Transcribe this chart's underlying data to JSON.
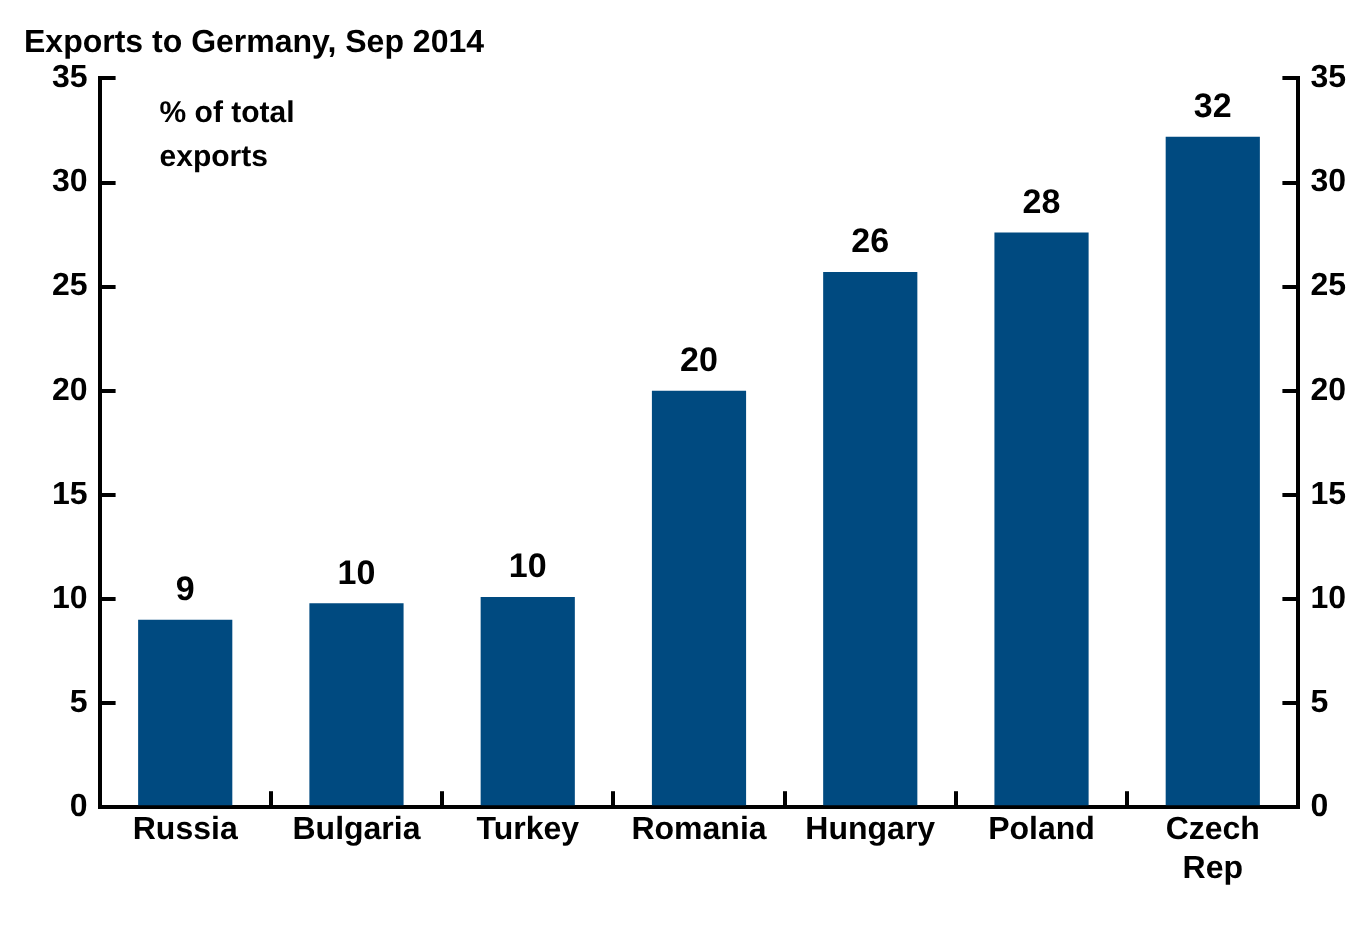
{
  "chart_data": {
    "type": "bar",
    "title": "Exports to Germany, Sep 2014",
    "annotations": [
      "% of total exports"
    ],
    "categories": [
      "Russia",
      "Bulgaria",
      "Turkey",
      "Romania",
      "Hungary",
      "Poland",
      "Czech Rep"
    ],
    "values": [
      9.0,
      9.8,
      10.1,
      20.0,
      25.7,
      27.6,
      32.2
    ],
    "value_labels": [
      "9",
      "10",
      "10",
      "20",
      "26",
      "28",
      "32"
    ],
    "color": "#004a80",
    "ylim": [
      0,
      35
    ],
    "yticks": [
      0,
      5,
      10,
      15,
      20,
      25,
      30,
      35
    ],
    "y2lim": [
      0,
      35
    ],
    "y2ticks": [
      0,
      5,
      10,
      15,
      20,
      25,
      30,
      35
    ],
    "grid": false,
    "legend": false
  }
}
